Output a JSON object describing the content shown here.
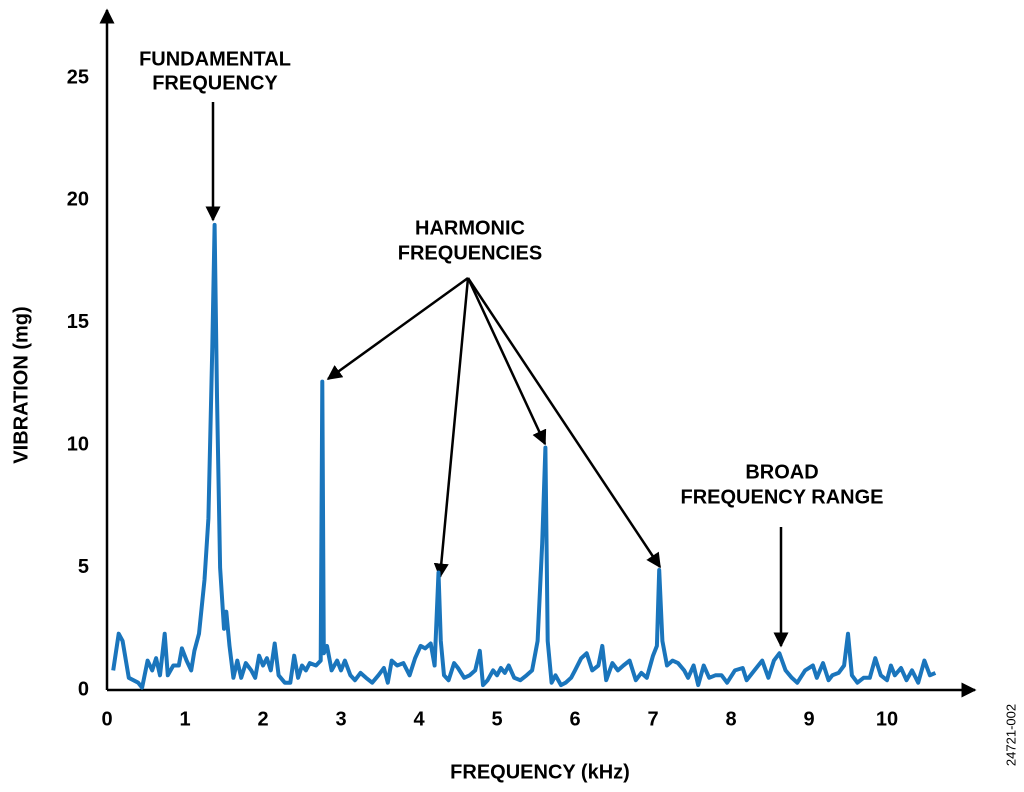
{
  "chart_data": {
    "type": "line",
    "x_label": "FREQUENCY (kHz)",
    "y_label": "VIBRATION (mg)",
    "annotations": [
      "FUNDAMENTAL",
      "FREQUENCY",
      "HARMONIC",
      "FREQUENCIES",
      "BROAD",
      "FREQUENCY RANGE"
    ],
    "figure_id": "24721-002",
    "color": "#1a75bc",
    "xlim": [
      0,
      11.1
    ],
    "ylim": [
      0,
      27.8
    ],
    "xticks": [
      0,
      1,
      2,
      3,
      4,
      5,
      6,
      7,
      8,
      9,
      10
    ],
    "yticks": [
      0,
      5,
      10,
      15,
      20,
      25
    ],
    "grid": false,
    "x": [
      0.08,
      0.15,
      0.2,
      0.28,
      0.4,
      0.45,
      0.52,
      0.58,
      0.63,
      0.68,
      0.74,
      0.78,
      0.85,
      0.92,
      0.96,
      1.02,
      1.08,
      1.12,
      1.18,
      1.25,
      1.3,
      1.35,
      1.38,
      1.41,
      1.45,
      1.5,
      1.53,
      1.57,
      1.62,
      1.67,
      1.72,
      1.78,
      1.85,
      1.9,
      1.95,
      2.0,
      2.05,
      2.1,
      2.15,
      2.2,
      2.28,
      2.35,
      2.4,
      2.45,
      2.5,
      2.55,
      2.6,
      2.68,
      2.74,
      2.76,
      2.78,
      2.82,
      2.88,
      2.95,
      3.0,
      3.05,
      3.12,
      3.18,
      3.25,
      3.32,
      3.4,
      3.48,
      3.55,
      3.6,
      3.65,
      3.72,
      3.8,
      3.88,
      3.95,
      4.02,
      4.08,
      4.15,
      4.2,
      4.25,
      4.28,
      4.32,
      4.38,
      4.45,
      4.5,
      4.58,
      4.65,
      4.72,
      4.78,
      4.82,
      4.88,
      4.95,
      5.0,
      5.05,
      5.1,
      5.15,
      5.22,
      5.3,
      5.38,
      5.45,
      5.52,
      5.58,
      5.62,
      5.65,
      5.7,
      5.75,
      5.82,
      5.88,
      5.95,
      6.0,
      6.08,
      6.15,
      6.22,
      6.3,
      6.35,
      6.4,
      6.48,
      6.55,
      6.62,
      6.7,
      6.78,
      6.85,
      6.92,
      7.0,
      7.05,
      7.08,
      7.12,
      7.18,
      7.25,
      7.32,
      7.4,
      7.45,
      7.52,
      7.58,
      7.65,
      7.72,
      7.8,
      7.88,
      7.95,
      8.05,
      8.15,
      8.2,
      8.3,
      8.4,
      8.48,
      8.55,
      8.62,
      8.7,
      8.78,
      8.85,
      8.95,
      9.05,
      9.1,
      9.18,
      9.25,
      9.3,
      9.38,
      9.45,
      9.5,
      9.55,
      9.62,
      9.7,
      9.78,
      9.85,
      9.92,
      10.0,
      10.05,
      10.1,
      10.18,
      10.25,
      10.32,
      10.4,
      10.48,
      10.55,
      10.62
    ],
    "values": [
      0.8,
      2.3,
      2.0,
      0.5,
      0.3,
      0.1,
      1.2,
      0.8,
      1.3,
      0.6,
      2.3,
      0.6,
      1.0,
      1.0,
      1.7,
      1.2,
      0.8,
      1.6,
      2.3,
      4.5,
      7,
      14,
      19,
      12,
      5,
      2.5,
      3.2,
      1.8,
      0.5,
      1.2,
      0.5,
      1.1,
      0.8,
      0.5,
      1.4,
      1.0,
      1.3,
      0.8,
      1.9,
      0.6,
      0.3,
      0.3,
      1.4,
      0.5,
      1.0,
      0.8,
      1.1,
      1.0,
      1.2,
      12.6,
      1.5,
      1.8,
      0.8,
      1.2,
      0.8,
      1.2,
      0.6,
      0.4,
      0.7,
      0.5,
      0.3,
      0.6,
      0.9,
      0.3,
      1.2,
      1.0,
      1.1,
      0.6,
      1.3,
      1.8,
      1.7,
      1.9,
      1.0,
      4.8,
      2.0,
      0.6,
      0.4,
      1.1,
      0.9,
      0.5,
      0.6,
      0.8,
      1.6,
      0.2,
      0.4,
      0.8,
      0.6,
      0.9,
      0.7,
      1.0,
      0.5,
      0.4,
      0.6,
      0.8,
      2.0,
      6,
      9.9,
      2,
      0.3,
      0.6,
      0.2,
      0.3,
      0.5,
      0.8,
      1.3,
      1.5,
      0.8,
      1.0,
      1.8,
      0.4,
      1.1,
      0.8,
      1.0,
      1.2,
      0.4,
      0.7,
      0.5,
      1.4,
      1.8,
      4.9,
      2.0,
      1.0,
      1.2,
      1.1,
      0.8,
      0.5,
      1.0,
      0.2,
      1.0,
      0.5,
      0.6,
      0.6,
      0.3,
      0.8,
      0.9,
      0.4,
      0.8,
      1.2,
      0.5,
      1.2,
      1.5,
      0.8,
      0.5,
      0.3,
      0.8,
      1.0,
      0.5,
      1.1,
      0.4,
      0.6,
      0.7,
      1.0,
      2.3,
      0.6,
      0.3,
      0.5,
      0.5,
      1.3,
      0.6,
      0.4,
      1.0,
      0.6,
      0.9,
      0.4,
      0.8,
      0.3,
      1.2,
      0.6,
      0.7
    ]
  }
}
